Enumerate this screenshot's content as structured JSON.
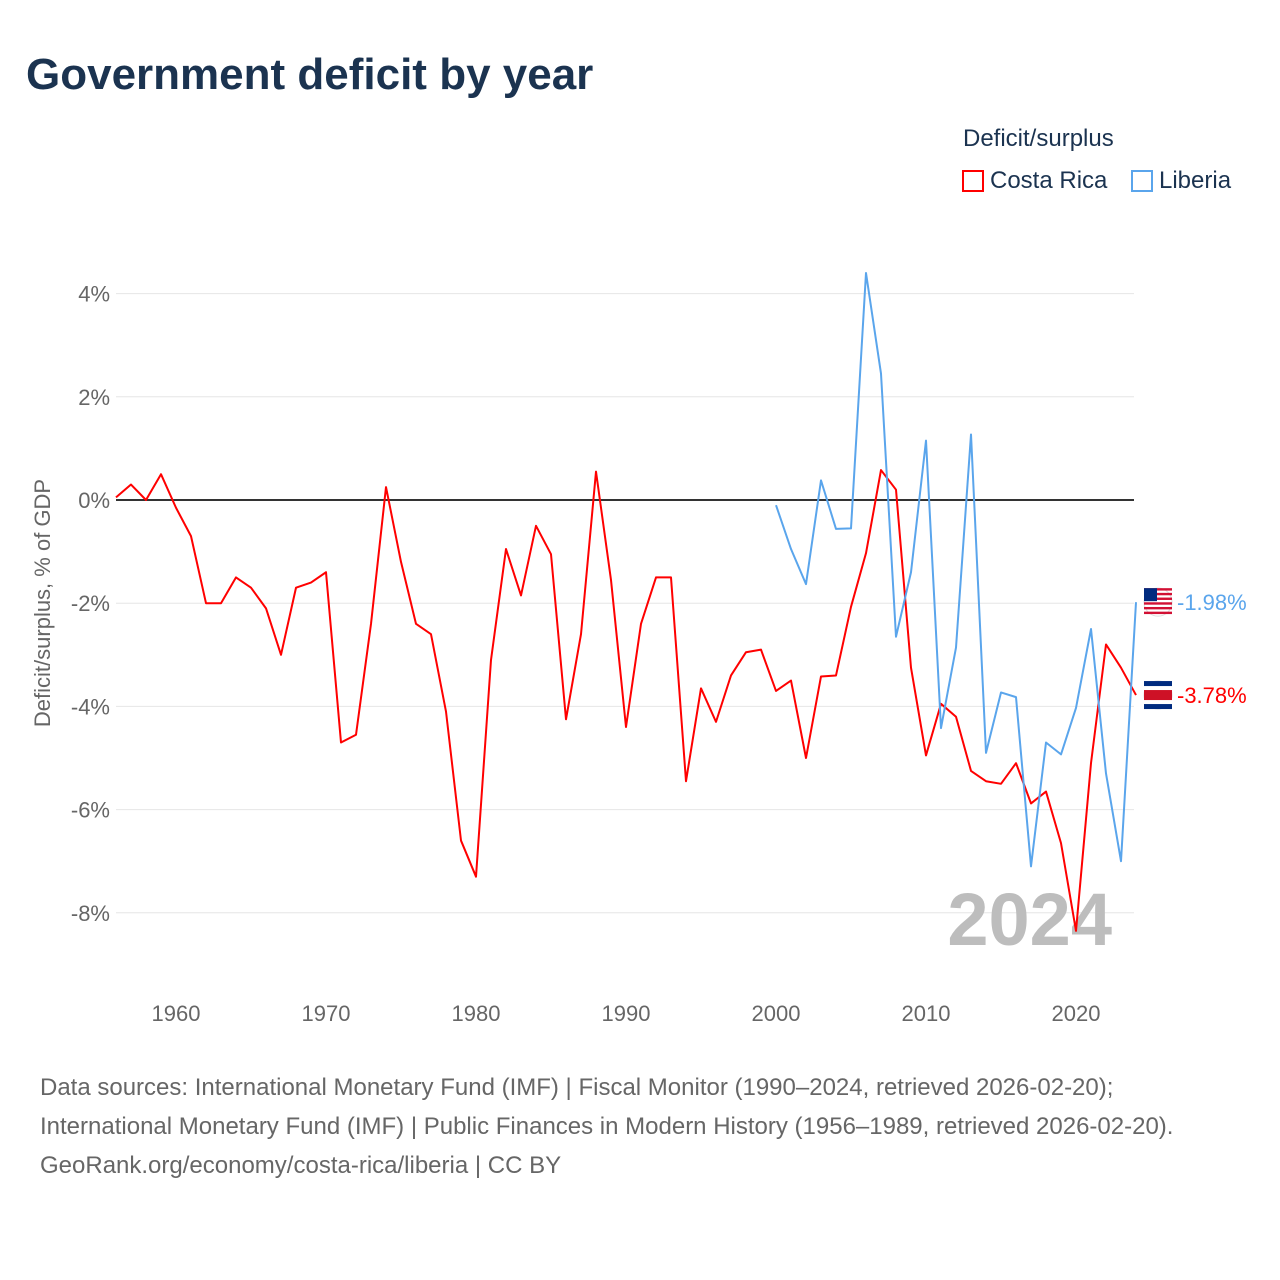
{
  "title": "Government deficit by year",
  "legend": {
    "title": "Deficit/surplus",
    "items": [
      {
        "name": "Costa Rica",
        "color": "#ff0000"
      },
      {
        "name": "Liberia",
        "color": "#5aa5ec"
      }
    ]
  },
  "sources": {
    "line1": "Data sources: International Monetary Fund (IMF) | Fiscal Monitor (1990–2024, retrieved 2026-02-20); International Monetary Fund (IMF) | Public Finances in Modern History (1956–1989, retrieved 2026-02-20).",
    "line2": "GeoRank.org/economy/costa-rica/liberia | CC BY"
  },
  "chart_data": {
    "type": "line",
    "title": "Government deficit by year",
    "ylabel": "Deficit/surplus, % of GDP",
    "xlabel": "",
    "xlim": [
      1956,
      2024
    ],
    "ylim": [
      -9,
      4.5
    ],
    "xticks": [
      1960,
      1970,
      1980,
      1990,
      2000,
      2010,
      2020
    ],
    "yticks": [
      -8,
      -6,
      -4,
      -2,
      0,
      2,
      4
    ],
    "ytick_labels": [
      "-8%",
      "-6%",
      "-4%",
      "-2%",
      "0%",
      "2%",
      "4%"
    ],
    "year_label": "2024",
    "grid": true,
    "legend_position": "top-right",
    "series": [
      {
        "name": "Costa Rica",
        "color": "#ff0000",
        "end_label": "-3.78%",
        "start_year": 1956,
        "values": [
          0.05,
          0.3,
          0,
          0.5,
          -0.15,
          -0.7,
          -2.0,
          -2.0,
          -1.5,
          -1.7,
          -2.1,
          -3.0,
          -1.7,
          -1.6,
          -1.4,
          -4.7,
          -4.55,
          -2.4,
          0.25,
          -1.2,
          -2.4,
          -2.6,
          -4.1,
          -6.6,
          -7.3,
          -3.1,
          -0.95,
          -1.85,
          -0.5,
          -1.05,
          -4.25,
          -2.6,
          0.55,
          -1.55,
          -4.4,
          -2.4,
          -1.5,
          -1.5,
          -5.45,
          -3.65,
          -4.3,
          -3.4,
          -2.95,
          -2.9,
          -3.7,
          -3.5,
          -5.0,
          -3.42,
          -3.4,
          -2.07,
          -1.03,
          0.58,
          0.2,
          -3.25,
          -4.95,
          -3.95,
          -4.2,
          -5.25,
          -5.45,
          -5.5,
          -5.1,
          -5.88,
          -5.65,
          -6.65,
          -8.35,
          -5.1,
          -2.8,
          -3.25,
          -3.78
        ]
      },
      {
        "name": "Liberia",
        "color": "#5aa5ec",
        "end_label": "-1.98%",
        "start_year": 2000,
        "values": [
          -0.1,
          -0.95,
          -1.63,
          0.38,
          -0.56,
          -0.55,
          4.4,
          2.45,
          -2.65,
          -1.4,
          1.15,
          -4.42,
          -2.86,
          1.27,
          -4.9,
          -3.73,
          -3.82,
          -7.1,
          -4.7,
          -4.93,
          -4.03,
          -2.5,
          -5.3,
          -7.0,
          -1.98
        ]
      }
    ]
  }
}
